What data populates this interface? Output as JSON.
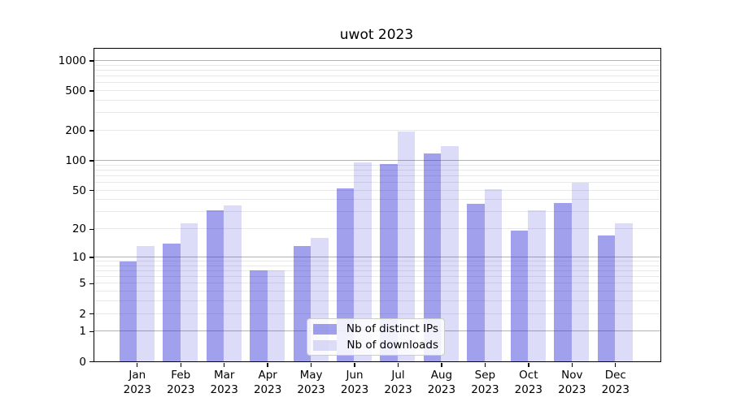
{
  "chart_data": {
    "type": "bar",
    "title": "uwot 2023",
    "categories": [
      "Jan 2023",
      "Feb 2023",
      "Mar 2023",
      "Apr 2023",
      "May 2023",
      "Jun 2023",
      "Jul 2023",
      "Aug 2023",
      "Sep 2023",
      "Oct 2023",
      "Nov 2023",
      "Dec 2023"
    ],
    "series": [
      {
        "name": "Nb of distinct IPs",
        "values": [
          9,
          14,
          31,
          7,
          13,
          52,
          92,
          117,
          36,
          19,
          37,
          17
        ],
        "color": "rgba(45,45,215,0.45)"
      },
      {
        "name": "Nb of downloads",
        "values": [
          13,
          23,
          35,
          7,
          16,
          95,
          195,
          140,
          51,
          31,
          59,
          23
        ],
        "color": "rgba(45,45,215,0.17)"
      }
    ],
    "xlabel": "",
    "ylabel": "",
    "y_scale": "log10(value+1)",
    "ylim": [
      0,
      1300
    ],
    "y_ticks": [
      0,
      1,
      2,
      5,
      10,
      20,
      50,
      100,
      200,
      500,
      1000
    ],
    "y_major_gridlines": [
      1,
      10,
      100,
      1000
    ],
    "y_minor_gridlines": [
      2,
      3,
      4,
      5,
      6,
      7,
      8,
      9,
      20,
      30,
      40,
      50,
      60,
      70,
      80,
      90,
      200,
      300,
      400,
      500,
      600,
      700,
      800,
      900
    ],
    "grid": true,
    "legend_position": "inside-bottom-center"
  },
  "legend": {
    "items": [
      {
        "label": "Nb of distinct IPs"
      },
      {
        "label": "Nb of downloads"
      }
    ]
  },
  "colors": {
    "bar_ips": "rgba(45,45,215,0.45)",
    "bar_downloads": "rgba(45,45,215,0.17)",
    "major_grid": "#b3b3b3",
    "minor_grid": "#e8e8e8",
    "spine": "#000000",
    "legend_bg": "rgba(255,255,255,0.85)",
    "legend_border": "#cccccc",
    "text": "#000000"
  }
}
